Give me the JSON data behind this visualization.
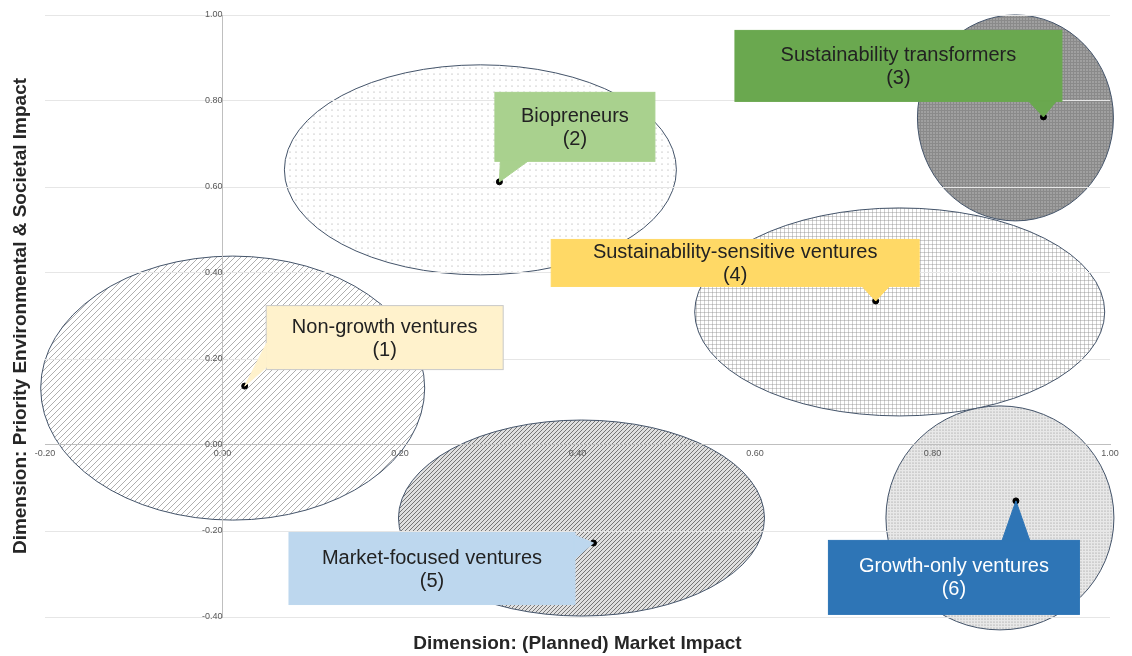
{
  "chart_data": {
    "type": "scatter",
    "xlabel": "Dimension: (Planned) Market Impact",
    "ylabel": "Dimension: Priority Environmental & Societal Impact",
    "x": [
      0.025,
      0.312,
      0.925,
      0.736,
      0.418,
      0.894
    ],
    "series": [
      {
        "color": "#000000",
        "values": [
          0.137,
          0.612,
          0.763,
          0.335,
          -0.228,
          -0.13
        ]
      }
    ],
    "xlim": [
      -0.2,
      1
    ],
    "ylim": [
      -0.4,
      1
    ],
    "xticks": [
      {
        "value": -0.2,
        "label": "-0.20"
      },
      {
        "value": 0,
        "label": "0.00"
      },
      {
        "value": 0.2,
        "label": "0.20"
      },
      {
        "value": 0.4,
        "label": "0.40"
      },
      {
        "value": 0.6,
        "label": "0.60"
      },
      {
        "value": 0.8,
        "label": "0.80"
      },
      {
        "value": 1,
        "label": "1.00"
      }
    ],
    "yticks": [
      {
        "value": -0.4,
        "label": "-0.40"
      },
      {
        "value": -0.2,
        "label": "-0.20"
      },
      {
        "value": 0,
        "label": "0.00"
      },
      {
        "value": 0.2,
        "label": "0.20"
      },
      {
        "value": 0.4,
        "label": "0.40"
      },
      {
        "value": 0.6,
        "label": "0.60"
      },
      {
        "value": 0.8,
        "label": "0.80"
      },
      {
        "value": 1,
        "label": "1.00"
      }
    ],
    "grid": "y",
    "marker": "circle",
    "annotations": [
      {
        "text": "Non-growth ventures\n(1)",
        "x": 0.025,
        "y": 0.137
      },
      {
        "text": "Biopreneurs\n(2)",
        "x": 0.312,
        "y": 0.612
      },
      {
        "text": "Sustainability transformers\n(3)",
        "x": 0.925,
        "y": 0.763
      },
      {
        "text": "Sustainability-sensitive ventures\n(4)",
        "x": 0.736,
        "y": 0.335
      },
      {
        "text": "Market-focused ventures\n(5)",
        "x": 0.418,
        "y": -0.228
      },
      {
        "text": "Growth-only ventures\n(6)",
        "x": 0.894,
        "y": -0.13
      }
    ]
  }
}
